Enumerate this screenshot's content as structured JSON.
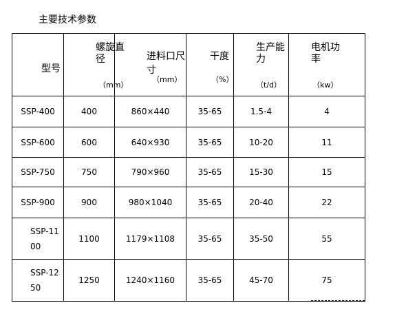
{
  "title": "主要技术参数",
  "headers": [
    {
      "name": "型号",
      "unit": ""
    },
    {
      "name": "螺旋直径",
      "unit": "（mm）"
    },
    {
      "name": "进料口尺寸",
      "unit": "（mm）"
    },
    {
      "name": "干度",
      "unit": "（%）"
    },
    {
      "name": "生产能力",
      "unit": "（t/d）"
    },
    {
      "name": "电机功率",
      "unit": "（kw）"
    }
  ],
  "rows": [
    [
      "SSP-400",
      "400",
      "860×440",
      "35-65",
      "1.5-4",
      "4"
    ],
    [
      "SSP-600",
      "600",
      "640×930",
      "35-65",
      "10-20",
      "11"
    ],
    [
      "SSP-750",
      "750",
      "790×960",
      "35-65",
      "15-30",
      "15"
    ],
    [
      "SSP-900",
      "900",
      "980×1040",
      "35-65",
      "20-40",
      "22"
    ],
    [
      "SSP-1100",
      "1100",
      "1179×1108",
      "35-65",
      "35-50",
      "55"
    ],
    [
      "SSP-1250",
      "1250",
      "1240×1160",
      "35-65",
      "45-70",
      "75"
    ]
  ]
}
